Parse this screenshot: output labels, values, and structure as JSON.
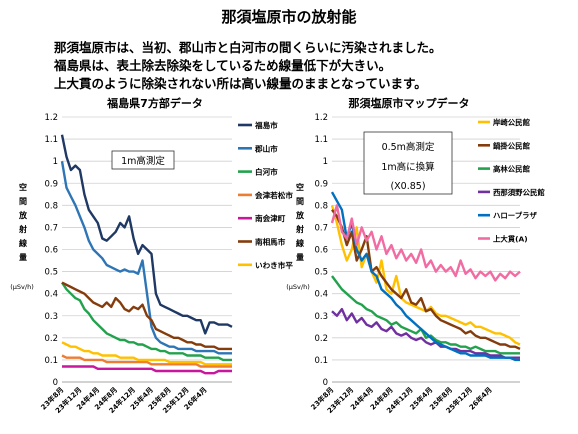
{
  "page": {
    "title": "那須塩原市の放射能",
    "intro": [
      "那須塩原市は、当初、郡山市と白河市の間くらいに汚染されました。",
      "福島県は、表土除去除染をしているため線量低下が大きい。",
      "上大貫のように除染されない所は高い線量のままとなっています。"
    ]
  },
  "chart_data": [
    {
      "type": "line",
      "title": "福島県7方部データ",
      "ylabel": "空間放射線量",
      "yunit": "(μSv/h)",
      "note": "1m高測定",
      "ylim": [
        0,
        1.2
      ],
      "yticks": [
        0,
        0.1,
        0.2,
        0.3,
        0.4,
        0.5,
        0.6,
        0.7,
        0.8,
        0.9,
        1.0,
        1.1,
        1.2
      ],
      "ytick_labels": [
        "0",
        "0.1",
        "0.2",
        "0.3",
        "0.4",
        "0.5",
        "0.6",
        "0.7",
        "0.8",
        "0.9",
        "1",
        "1.1",
        "1.2"
      ],
      "xticks": [
        "23年8月",
        "23年12月",
        "24年4月",
        "24年8月",
        "24年12月",
        "25年4月",
        "25年8月",
        "25年12月",
        "26年4月"
      ],
      "x_start": "2011-08",
      "n_points": 39,
      "grid": true,
      "legend_position": "right",
      "series": [
        {
          "name": "福島市",
          "color": "#1f3864",
          "values": [
            1.12,
            1.02,
            0.96,
            0.98,
            0.96,
            0.85,
            0.78,
            0.75,
            0.72,
            0.65,
            0.64,
            0.66,
            0.68,
            0.72,
            0.7,
            0.75,
            0.65,
            0.58,
            0.62,
            0.6,
            0.58,
            0.4,
            0.35,
            0.34,
            0.33,
            0.32,
            0.31,
            0.3,
            0.3,
            0.29,
            0.28,
            0.28,
            0.22,
            0.27,
            0.27,
            0.26,
            0.26,
            0.26,
            0.25
          ]
        },
        {
          "name": "郡山市",
          "color": "#2e75b6",
          "values": [
            1.0,
            0.88,
            0.84,
            0.8,
            0.75,
            0.7,
            0.64,
            0.6,
            0.58,
            0.56,
            0.53,
            0.52,
            0.51,
            0.5,
            0.51,
            0.5,
            0.5,
            0.49,
            0.55,
            0.4,
            0.25,
            0.2,
            0.18,
            0.17,
            0.16,
            0.16,
            0.15,
            0.15,
            0.15,
            0.15,
            0.14,
            0.14,
            0.14,
            0.14,
            0.14,
            0.13,
            0.13,
            0.13,
            0.13
          ]
        },
        {
          "name": "白河市",
          "color": "#23a24d",
          "values": [
            0.45,
            0.42,
            0.4,
            0.38,
            0.37,
            0.33,
            0.31,
            0.28,
            0.26,
            0.24,
            0.22,
            0.21,
            0.2,
            0.19,
            0.19,
            0.18,
            0.18,
            0.17,
            0.17,
            0.16,
            0.15,
            0.15,
            0.14,
            0.14,
            0.13,
            0.13,
            0.13,
            0.13,
            0.12,
            0.12,
            0.12,
            0.12,
            0.11,
            0.11,
            0.11,
            0.11,
            0.1,
            0.1,
            0.1
          ]
        },
        {
          "name": "会津若松市",
          "color": "#ed7d31",
          "values": [
            0.12,
            0.11,
            0.11,
            0.11,
            0.11,
            0.1,
            0.1,
            0.1,
            0.1,
            0.1,
            0.09,
            0.09,
            0.09,
            0.09,
            0.09,
            0.09,
            0.09,
            0.09,
            0.09,
            0.09,
            0.08,
            0.08,
            0.08,
            0.08,
            0.08,
            0.08,
            0.08,
            0.08,
            0.08,
            0.08,
            0.08,
            0.07,
            0.07,
            0.07,
            0.07,
            0.07,
            0.07,
            0.07,
            0.07
          ]
        },
        {
          "name": "南会津町",
          "color": "#c8169d",
          "values": [
            0.07,
            0.07,
            0.07,
            0.07,
            0.07,
            0.07,
            0.07,
            0.07,
            0.06,
            0.06,
            0.06,
            0.06,
            0.06,
            0.06,
            0.06,
            0.06,
            0.06,
            0.06,
            0.06,
            0.06,
            0.06,
            0.05,
            0.05,
            0.05,
            0.05,
            0.05,
            0.05,
            0.05,
            0.05,
            0.05,
            0.05,
            0.05,
            0.04,
            0.04,
            0.04,
            0.05,
            0.05,
            0.05,
            0.05
          ]
        },
        {
          "name": "南相馬市",
          "color": "#843c0c",
          "values": [
            0.45,
            0.44,
            0.43,
            0.42,
            0.41,
            0.4,
            0.38,
            0.36,
            0.35,
            0.34,
            0.36,
            0.34,
            0.38,
            0.36,
            0.33,
            0.32,
            0.34,
            0.33,
            0.35,
            0.3,
            0.28,
            0.24,
            0.23,
            0.22,
            0.21,
            0.2,
            0.2,
            0.19,
            0.18,
            0.18,
            0.17,
            0.17,
            0.16,
            0.16,
            0.16,
            0.15,
            0.15,
            0.15,
            0.15
          ]
        },
        {
          "name": "いわき市平",
          "color": "#ffc000",
          "values": [
            0.18,
            0.17,
            0.16,
            0.16,
            0.15,
            0.14,
            0.14,
            0.13,
            0.13,
            0.12,
            0.12,
            0.12,
            0.12,
            0.11,
            0.11,
            0.11,
            0.11,
            0.1,
            0.1,
            0.1,
            0.1,
            0.1,
            0.1,
            0.1,
            0.09,
            0.09,
            0.09,
            0.09,
            0.09,
            0.09,
            0.09,
            0.09,
            0.08,
            0.08,
            0.08,
            0.08,
            0.08,
            0.08,
            0.08
          ]
        }
      ]
    },
    {
      "type": "line",
      "title": "那須塩原市マップデータ",
      "ylabel": "空間放射線量",
      "yunit": "(μSv/h)",
      "note": [
        "0.5m高測定",
        "1m高に換算",
        "(X0.85)"
      ],
      "ylim": [
        0,
        1.2
      ],
      "yticks": [
        0,
        0.1,
        0.2,
        0.3,
        0.4,
        0.5,
        0.6,
        0.7,
        0.8,
        0.9,
        1.0,
        1.1,
        1.2
      ],
      "ytick_labels": [
        "0",
        "0.1",
        "0.2",
        "0.3",
        "0.4",
        "0.5",
        "0.6",
        "0.7",
        "0.8",
        "0.9",
        "1",
        "1.1",
        "1.2"
      ],
      "xticks": [
        "23年8月",
        "23年12月",
        "24年4月",
        "24年8月",
        "24年12月",
        "25年4月",
        "25年8月",
        "25年12月",
        "26年4月"
      ],
      "x_start": "2011-08",
      "n_points": 39,
      "grid": true,
      "legend_position": "right",
      "series": [
        {
          "name": "岸崎公民館",
          "color": "#ffc000",
          "values": [
            0.8,
            0.72,
            0.62,
            0.55,
            0.6,
            0.7,
            0.52,
            0.58,
            0.5,
            0.45,
            0.55,
            0.42,
            0.4,
            0.48,
            0.38,
            0.36,
            0.35,
            0.34,
            0.33,
            0.32,
            0.34,
            0.31,
            0.3,
            0.3,
            0.29,
            0.28,
            0.27,
            0.26,
            0.27,
            0.25,
            0.25,
            0.24,
            0.23,
            0.22,
            0.22,
            0.21,
            0.2,
            0.18,
            0.17
          ]
        },
        {
          "name": "鍋掛公民館",
          "color": "#843c0c",
          "values": [
            0.78,
            0.75,
            0.7,
            0.62,
            0.68,
            0.55,
            0.6,
            0.66,
            0.5,
            0.52,
            0.48,
            0.45,
            0.42,
            0.4,
            0.38,
            0.42,
            0.36,
            0.35,
            0.38,
            0.32,
            0.33,
            0.3,
            0.28,
            0.27,
            0.26,
            0.25,
            0.24,
            0.22,
            0.23,
            0.21,
            0.2,
            0.2,
            0.19,
            0.18,
            0.17,
            0.17,
            0.16,
            0.16,
            0.15
          ]
        },
        {
          "name": "高林公民館",
          "color": "#23a24d",
          "values": [
            0.48,
            0.45,
            0.42,
            0.4,
            0.38,
            0.36,
            0.35,
            0.33,
            0.32,
            0.3,
            0.29,
            0.28,
            0.26,
            0.27,
            0.25,
            0.24,
            0.23,
            0.22,
            0.24,
            0.2,
            0.21,
            0.19,
            0.18,
            0.18,
            0.17,
            0.17,
            0.16,
            0.16,
            0.15,
            0.16,
            0.15,
            0.14,
            0.14,
            0.14,
            0.13,
            0.13,
            0.13,
            0.13,
            0.13
          ]
        },
        {
          "name": "西那須野公民館",
          "color": "#7030a0",
          "values": [
            0.32,
            0.3,
            0.33,
            0.28,
            0.31,
            0.27,
            0.29,
            0.26,
            0.25,
            0.27,
            0.24,
            0.23,
            0.25,
            0.22,
            0.21,
            0.22,
            0.2,
            0.19,
            0.2,
            0.18,
            0.17,
            0.18,
            0.16,
            0.16,
            0.15,
            0.15,
            0.14,
            0.14,
            0.14,
            0.13,
            0.13,
            0.13,
            0.12,
            0.12,
            0.12,
            0.11,
            0.11,
            0.11,
            0.11
          ]
        },
        {
          "name": "ハロープラザ",
          "color": "#0070c0",
          "values": [
            0.86,
            0.82,
            0.78,
            0.65,
            0.72,
            0.6,
            0.55,
            0.58,
            0.5,
            0.48,
            0.42,
            0.4,
            0.38,
            0.35,
            0.33,
            0.3,
            0.28,
            0.26,
            0.24,
            0.22,
            0.2,
            0.18,
            0.17,
            0.16,
            0.15,
            0.14,
            0.13,
            0.13,
            0.12,
            0.12,
            0.12,
            0.12,
            0.11,
            0.11,
            0.11,
            0.11,
            0.11,
            0.1,
            0.1
          ]
        },
        {
          "name": "上大貫(A)",
          "color": "#f06ca3",
          "values": [
            0.72,
            0.8,
            0.68,
            0.65,
            0.74,
            0.62,
            0.7,
            0.64,
            0.68,
            0.6,
            0.66,
            0.58,
            0.62,
            0.56,
            0.6,
            0.55,
            0.58,
            0.54,
            0.6,
            0.52,
            0.55,
            0.5,
            0.53,
            0.5,
            0.52,
            0.48,
            0.55,
            0.49,
            0.51,
            0.47,
            0.5,
            0.48,
            0.5,
            0.46,
            0.49,
            0.47,
            0.5,
            0.48,
            0.5
          ]
        }
      ]
    }
  ]
}
